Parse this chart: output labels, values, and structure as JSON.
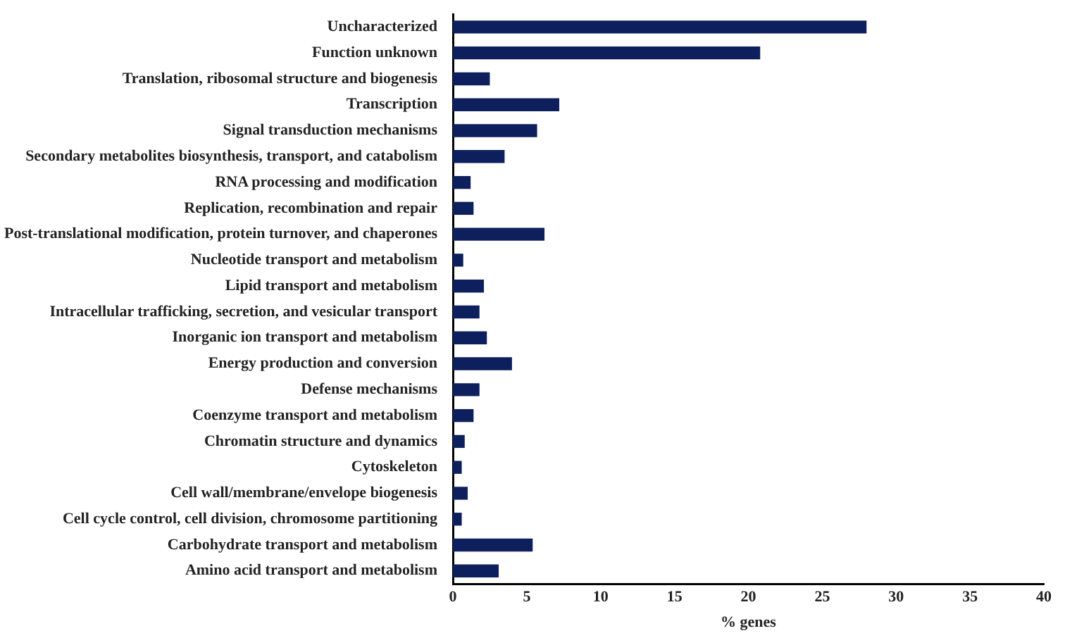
{
  "chart_data": {
    "type": "bar",
    "orientation": "horizontal",
    "xlabel": "% genes",
    "categories": [
      "Uncharacterized",
      "Function unknown",
      "Translation, ribosomal structure and biogenesis",
      "Transcription",
      "Signal transduction mechanisms",
      "Secondary metabolites biosynthesis, transport, and catabolism",
      "RNA processing and modification",
      "Replication, recombination and repair",
      "Post-translational modification, protein turnover, and chaperones",
      "Nucleotide transport and metabolism",
      "Lipid transport and metabolism",
      "Intracellular trafficking, secretion, and vesicular transport",
      "Inorganic ion transport and metabolism",
      "Energy production and conversion",
      "Defense mechanisms",
      "Coenzyme transport and metabolism",
      "Chromatin structure and dynamics",
      "Cytoskeleton",
      "Cell wall/membrane/envelope biogenesis",
      "Cell cycle control, cell division, chromosome partitioning",
      "Carbohydrate transport and metabolism",
      "Amino acid transport and metabolism"
    ],
    "values": [
      28.0,
      20.8,
      2.5,
      7.2,
      5.7,
      3.5,
      1.2,
      1.4,
      6.2,
      0.7,
      2.1,
      1.8,
      2.3,
      4.0,
      1.8,
      1.4,
      0.8,
      0.6,
      1.0,
      0.6,
      5.4,
      3.1
    ],
    "color": "#0d1f5c",
    "xlim": [
      0,
      40
    ],
    "xticks": [
      0,
      5,
      10,
      15,
      20,
      25,
      30,
      35,
      40
    ],
    "grid": false,
    "legend": false
  }
}
